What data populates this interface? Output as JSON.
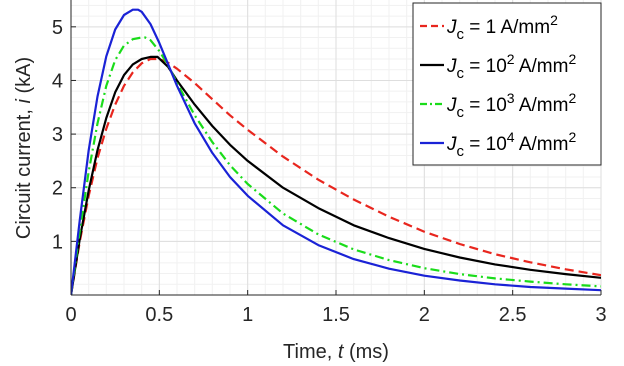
{
  "chart_data": {
    "type": "line",
    "xlabel": {
      "pre": "Time, ",
      "var": "t",
      "post": " (ms)"
    },
    "ylabel": {
      "pre": "Circuit current, ",
      "var": "i",
      "post": " (kA)"
    },
    "xlim": [
      0,
      3
    ],
    "ylim": [
      0,
      5.5
    ],
    "x_ticks": [
      0,
      0.5,
      1,
      1.5,
      2,
      2.5,
      3
    ],
    "x_tick_labels": [
      "0",
      "0.5",
      "1",
      "1.5",
      "2",
      "2.5",
      "3"
    ],
    "y_ticks": [
      1,
      2,
      3,
      4,
      5
    ],
    "y_tick_labels": [
      "1",
      "2",
      "3",
      "4",
      "5"
    ],
    "grid": true,
    "minor_grid": true,
    "legend_position": "top-right",
    "series": [
      {
        "legend": {
          "sym": "J",
          "sub": "c",
          "eq": " = ",
          "base": "1 A/mm",
          "sup": "2"
        },
        "color": "#e8261e",
        "style": "dashed",
        "x": [
          0,
          0.05,
          0.1,
          0.15,
          0.2,
          0.25,
          0.3,
          0.35,
          0.4,
          0.45,
          0.5,
          0.55,
          0.6,
          0.7,
          0.8,
          0.9,
          1.0,
          1.2,
          1.4,
          1.6,
          1.8,
          2.0,
          2.2,
          2.4,
          2.6,
          2.8,
          3.0
        ],
        "y": [
          0,
          1.0,
          1.85,
          2.55,
          3.1,
          3.55,
          3.9,
          4.15,
          4.32,
          4.4,
          4.4,
          4.33,
          4.22,
          3.95,
          3.65,
          3.35,
          3.08,
          2.58,
          2.15,
          1.78,
          1.46,
          1.18,
          0.95,
          0.76,
          0.61,
          0.48,
          0.37
        ]
      },
      {
        "legend": {
          "sym": "J",
          "sub": "c",
          "eq": " = ",
          "base": "10",
          "bsup": "2",
          "unit": " A/mm",
          "sup": "2"
        },
        "color": "#000000",
        "style": "solid",
        "x": [
          0,
          0.05,
          0.1,
          0.15,
          0.2,
          0.25,
          0.3,
          0.35,
          0.4,
          0.45,
          0.49,
          0.55,
          0.6,
          0.7,
          0.8,
          0.9,
          1.0,
          1.2,
          1.4,
          1.6,
          1.8,
          2.0,
          2.2,
          2.4,
          2.6,
          2.8,
          3.0
        ],
        "y": [
          0,
          1.05,
          1.95,
          2.7,
          3.3,
          3.78,
          4.1,
          4.3,
          4.4,
          4.44,
          4.44,
          4.25,
          4.0,
          3.55,
          3.15,
          2.8,
          2.5,
          2.0,
          1.62,
          1.3,
          1.06,
          0.86,
          0.7,
          0.57,
          0.47,
          0.39,
          0.32
        ]
      },
      {
        "legend": {
          "sym": "J",
          "sub": "c",
          "eq": " = ",
          "base": "10",
          "bsup": "3",
          "unit": " A/mm",
          "sup": "2"
        },
        "color": "#1adc1a",
        "style": "dashdot",
        "x": [
          0,
          0.05,
          0.1,
          0.15,
          0.2,
          0.25,
          0.3,
          0.35,
          0.4,
          0.42,
          0.45,
          0.5,
          0.55,
          0.6,
          0.7,
          0.8,
          0.9,
          1.0,
          1.2,
          1.4,
          1.6,
          1.8,
          2.0,
          2.2,
          2.4,
          2.6,
          2.8,
          3.0
        ],
        "y": [
          0,
          1.2,
          2.3,
          3.2,
          3.9,
          4.38,
          4.65,
          4.77,
          4.8,
          4.8,
          4.75,
          4.55,
          4.28,
          3.95,
          3.35,
          2.85,
          2.42,
          2.07,
          1.52,
          1.13,
          0.85,
          0.65,
          0.5,
          0.39,
          0.31,
          0.25,
          0.2,
          0.16
        ]
      },
      {
        "legend": {
          "sym": "J",
          "sub": "c",
          "eq": " = ",
          "base": "10",
          "bsup": "4",
          "unit": " A/mm",
          "sup": "2"
        },
        "color": "#1a22d6",
        "style": "solid",
        "x": [
          0,
          0.05,
          0.1,
          0.15,
          0.2,
          0.25,
          0.3,
          0.35,
          0.38,
          0.4,
          0.45,
          0.5,
          0.55,
          0.6,
          0.7,
          0.8,
          0.9,
          1.0,
          1.2,
          1.4,
          1.6,
          1.8,
          2.0,
          2.2,
          2.4,
          2.6,
          2.8,
          3.0
        ],
        "y": [
          0,
          1.4,
          2.7,
          3.7,
          4.45,
          4.95,
          5.22,
          5.32,
          5.32,
          5.28,
          5.05,
          4.7,
          4.3,
          3.9,
          3.2,
          2.65,
          2.2,
          1.85,
          1.3,
          0.93,
          0.67,
          0.49,
          0.36,
          0.27,
          0.2,
          0.15,
          0.12,
          0.09
        ]
      }
    ]
  }
}
